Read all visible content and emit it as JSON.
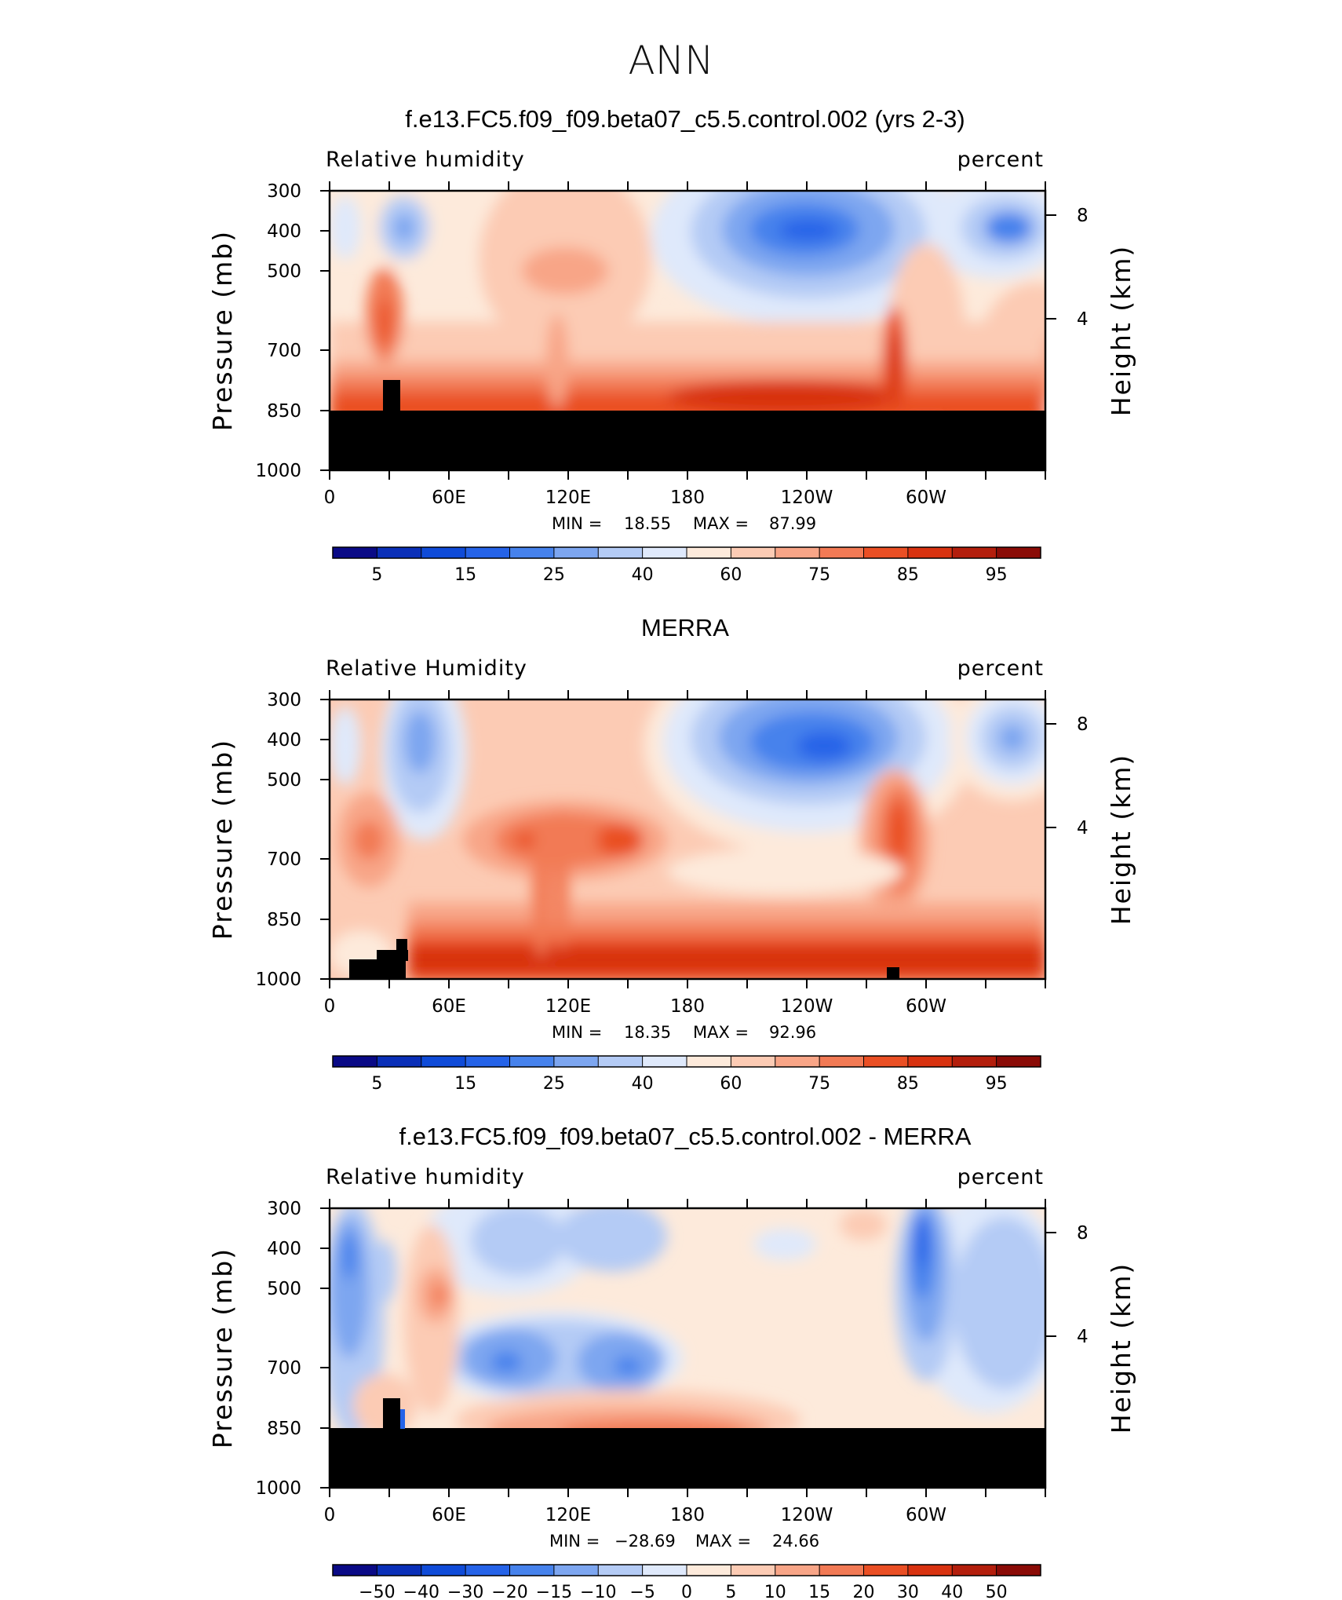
{
  "suptitle": "ANN",
  "colors": {
    "model_scale": [
      "#0a0a86",
      "#0a2fb8",
      "#0f4bd8",
      "#2563e8",
      "#4682ec",
      "#7da6f0",
      "#b4cbf5",
      "#dfe9fb",
      "#fdeadb",
      "#fccbb4",
      "#f8a587",
      "#f27a55",
      "#ea4f24",
      "#d83210",
      "#b31e0c",
      "#8a0b06"
    ],
    "diff_scale": [
      "#0a0a86",
      "#0a2fb8",
      "#0f4bd8",
      "#2563e8",
      "#4682ec",
      "#7da6f0",
      "#b4cbf5",
      "#dfe9fb",
      "#fdeadb",
      "#fccbb4",
      "#f8a587",
      "#f27a55",
      "#ea4f24",
      "#d83210",
      "#b31e0c",
      "#8a0b06"
    ]
  },
  "chart_data": [
    {
      "type": "heatmap",
      "title": "f.e13.FC5.f09_f09.beta07_c5.5.control.002 (yrs 2-3)",
      "variable": "Relative humidity",
      "units": "percent",
      "ylabel": "Pressure (mb)",
      "ylabel_right": "Height (km)",
      "y_ticks": [
        "300",
        "400",
        "500",
        "700",
        "850",
        "1000"
      ],
      "y_right_ticks": [
        "8",
        "4"
      ],
      "x_ticks": [
        "0",
        "60E",
        "120E",
        "180",
        "120W",
        "60W"
      ],
      "stats": {
        "min_label": "MIN =",
        "min": "18.55",
        "max_label": "MAX =",
        "max": "87.99"
      },
      "colorbar_labels": [
        "5",
        "15",
        "25",
        "40",
        "60",
        "75",
        "85",
        "95"
      ],
      "ylim": [
        1000,
        300
      ],
      "xlim": [
        0,
        360
      ]
    },
    {
      "type": "heatmap",
      "title": "MERRA",
      "variable": "Relative Humidity",
      "units": "percent",
      "ylabel": "Pressure (mb)",
      "ylabel_right": "Height (km)",
      "y_ticks": [
        "300",
        "400",
        "500",
        "700",
        "850",
        "1000"
      ],
      "y_right_ticks": [
        "8",
        "4"
      ],
      "x_ticks": [
        "0",
        "60E",
        "120E",
        "180",
        "120W",
        "60W"
      ],
      "stats": {
        "min_label": "MIN =",
        "min": "18.35",
        "max_label": "MAX =",
        "max": "92.96"
      },
      "colorbar_labels": [
        "5",
        "15",
        "25",
        "40",
        "60",
        "75",
        "85",
        "95"
      ],
      "ylim": [
        1000,
        300
      ],
      "xlim": [
        0,
        360
      ]
    },
    {
      "type": "heatmap",
      "title": "f.e13.FC5.f09_f09.beta07_c5.5.control.002 - MERRA",
      "variable": "Relative humidity",
      "units": "percent",
      "ylabel": "Pressure (mb)",
      "ylabel_right": "Height (km)",
      "y_ticks": [
        "300",
        "400",
        "500",
        "700",
        "850",
        "1000"
      ],
      "y_right_ticks": [
        "8",
        "4"
      ],
      "x_ticks": [
        "0",
        "60E",
        "120E",
        "180",
        "120W",
        "60W"
      ],
      "stats": {
        "min_label": "MIN =",
        "min": "−28.69",
        "max_label": "MAX =",
        "max": "24.66"
      },
      "colorbar_labels": [
        "−50",
        "−40",
        "−30",
        "−20",
        "−15",
        "−10",
        "−5",
        "0",
        "5",
        "10",
        "15",
        "20",
        "30",
        "40",
        "50"
      ],
      "ylim": [
        1000,
        300
      ],
      "xlim": [
        0,
        360
      ]
    }
  ]
}
